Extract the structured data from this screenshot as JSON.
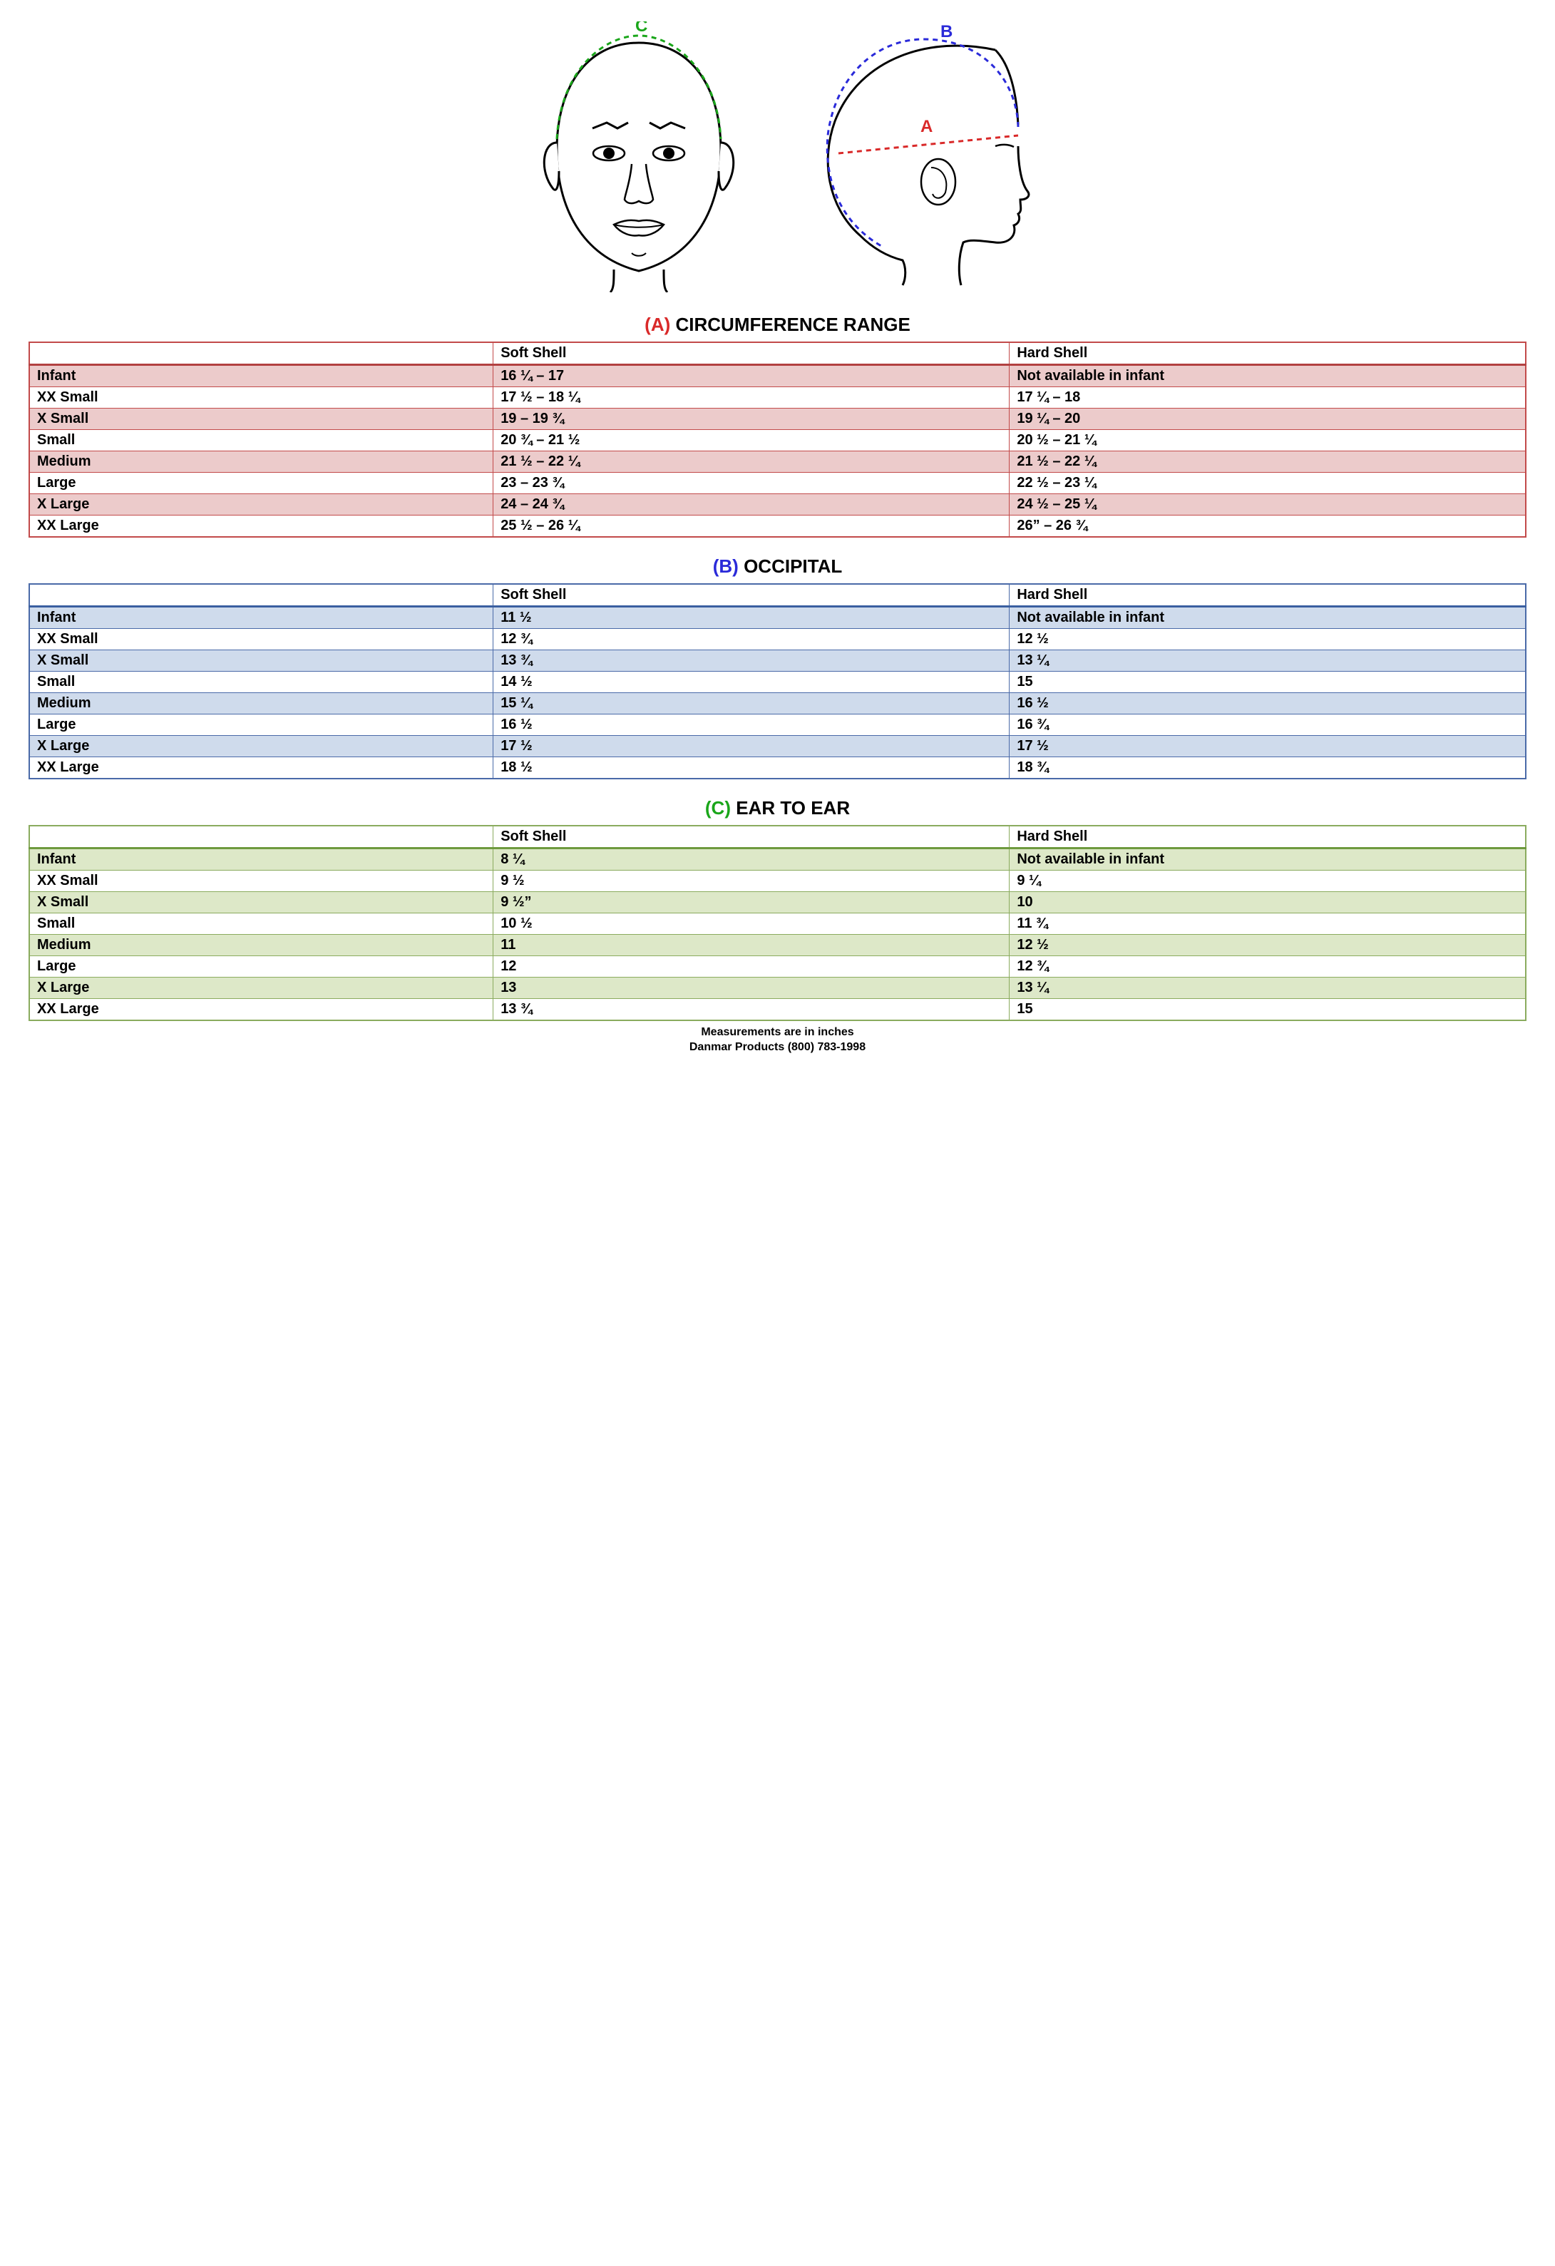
{
  "diagram": {
    "labels": {
      "a": "A",
      "b": "B",
      "c": "C"
    },
    "colors": {
      "a": "#d92929",
      "b": "#2a2ad9",
      "c": "#1aa61a"
    },
    "stroke": "#000000",
    "dash": "6,5",
    "line_width": 3
  },
  "columns": [
    "",
    "Soft Shell",
    "Hard Shell"
  ],
  "sizes": [
    "Infant",
    "XX Small",
    "X Small",
    "Small",
    "Medium",
    "Large",
    "X Large",
    "XX Large"
  ],
  "tables": [
    {
      "letter": "(A)",
      "title": "CIRCUMFERENCE RANGE",
      "letter_color": "#d92929",
      "border_color": "#c24a4a",
      "header_underline": "#b24040",
      "row_alt_bg": "#eccbcb",
      "rows": [
        [
          "16 ¼ – 17",
          "Not available in infant"
        ],
        [
          "17 ½ – 18 ¼",
          "17 ¼ – 18"
        ],
        [
          "19 – 19 ¾",
          "19 ¼ – 20"
        ],
        [
          "20 ¾ – 21 ½",
          "20 ½ – 21 ¼"
        ],
        [
          "21 ½ – 22 ¼",
          "21 ½ – 22 ¼"
        ],
        [
          "23 – 23 ¾",
          "22 ½ – 23 ¼"
        ],
        [
          "24 – 24 ¾",
          "24 ½ – 25 ¼"
        ],
        [
          "25 ½ – 26 ¼",
          "26” – 26 ¾"
        ]
      ]
    },
    {
      "letter": "(B)",
      "title": "OCCIPITAL",
      "letter_color": "#2a2ad9",
      "border_color": "#4a6aa8",
      "header_underline": "#3a5fa0",
      "row_alt_bg": "#cfdbec",
      "rows": [
        [
          "11 ½",
          "Not available in infant"
        ],
        [
          "12 ¾",
          "12 ½"
        ],
        [
          "13 ¾",
          "13 ¼"
        ],
        [
          "14 ½",
          "15"
        ],
        [
          "15 ¼",
          "16 ½"
        ],
        [
          "16 ½",
          "16 ¾"
        ],
        [
          "17 ½",
          "17 ½"
        ],
        [
          "18 ½",
          "18 ¾"
        ]
      ]
    },
    {
      "letter": "(C)",
      "title": "EAR TO EAR",
      "letter_color": "#1aa61a",
      "border_color": "#8aab5e",
      "header_underline": "#6e9a3e",
      "row_alt_bg": "#dde8c8",
      "rows": [
        [
          "8 ¼",
          "Not available in infant"
        ],
        [
          "9 ½",
          "9 ¼"
        ],
        [
          "9 ½”",
          "10"
        ],
        [
          "10 ½",
          "11 ¾"
        ],
        [
          "11",
          "12 ½"
        ],
        [
          "12",
          "12 ¾"
        ],
        [
          "13",
          "13 ¼"
        ],
        [
          "13 ¾",
          "15"
        ]
      ]
    }
  ],
  "footer": {
    "line1": "Measurements are in inches",
    "line2": "Danmar Products (800) 783-1998"
  }
}
